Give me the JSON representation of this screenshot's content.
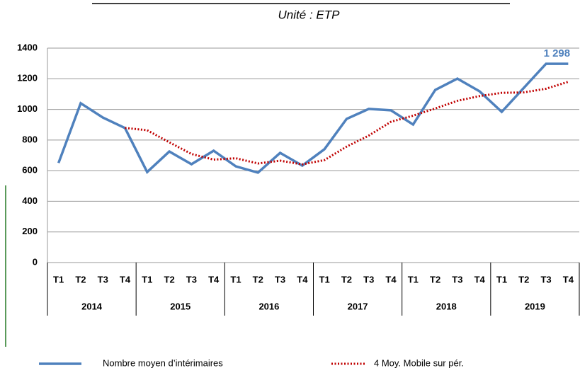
{
  "chart_data": {
    "type": "line",
    "subtitle": "Unité : ETP",
    "categories": [
      "T1",
      "T2",
      "T3",
      "T4",
      "T1",
      "T2",
      "T3",
      "T4",
      "T1",
      "T2",
      "T3",
      "T4",
      "T1",
      "T2",
      "T3",
      "T4",
      "T1",
      "T2",
      "T3",
      "T4",
      "T1",
      "T2",
      "T3",
      "T4"
    ],
    "groups": [
      "2014",
      "2015",
      "2016",
      "2017",
      "2018",
      "2019"
    ],
    "series": [
      {
        "name": "Nombre moyen d’intérimaires",
        "color": "#4f81bd",
        "style": "solid",
        "values": [
          650,
          1040,
          947,
          878,
          591,
          725,
          642,
          730,
          628,
          587,
          716,
          633,
          740,
          938,
          1003,
          994,
          901,
          1127,
          1201,
          1118,
          984,
          1141,
          1298,
          1298
        ],
        "value_labels": [
          null,
          null,
          null,
          null,
          null,
          null,
          null,
          null,
          null,
          null,
          null,
          null,
          null,
          null,
          null,
          null,
          null,
          null,
          null,
          null,
          null,
          null,
          null,
          "1 298"
        ]
      },
      {
        "name": "4 Moy. Mobile sur pér.",
        "color": "#c00000",
        "style": "dotted",
        "values": [
          null,
          null,
          null,
          879,
          864,
          785,
          709,
          672,
          681,
          647,
          665,
          641,
          669,
          757,
          829,
          919,
          959,
          1006,
          1056,
          1087,
          1108,
          1111,
          1135,
          1180
        ]
      }
    ],
    "ylim": [
      0,
      1400
    ],
    "yticks": [
      0,
      200,
      400,
      600,
      800,
      1000,
      1200,
      1400
    ],
    "grid": true
  }
}
